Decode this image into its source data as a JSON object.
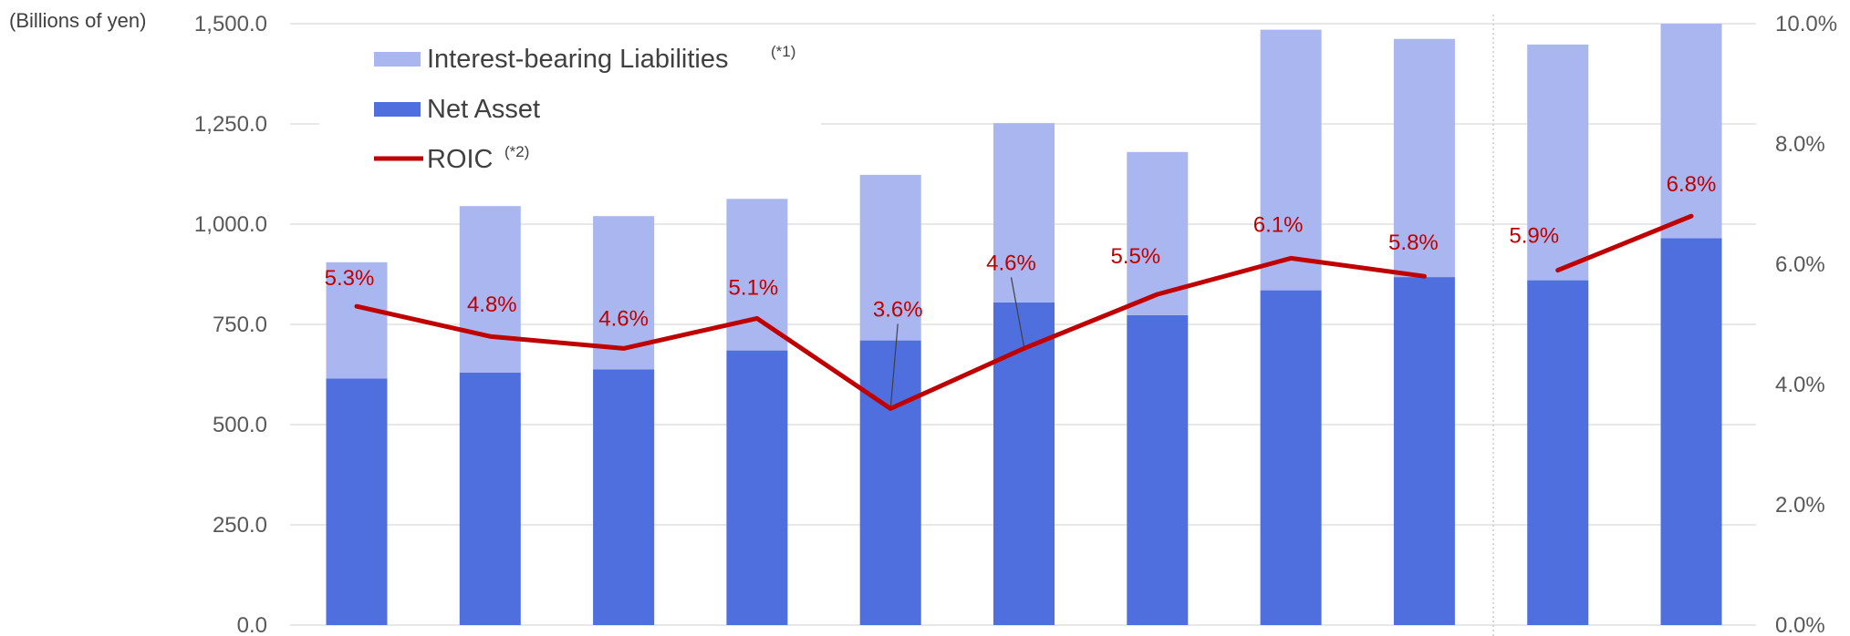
{
  "colors": {
    "interest_bearing": "#a9b6ef",
    "net_asset": "#4f6fdf",
    "roic": "#c00000",
    "grid": "#d9d9d9",
    "axis_text": "#595959"
  },
  "chart_data": {
    "type": "bar",
    "stacked": true,
    "unit_label": "(Billions of yen)",
    "categories": [
      "",
      "",
      "",
      "",
      "",
      "",
      "",
      "",
      "",
      "",
      ""
    ],
    "series": [
      {
        "name": "Net Asset",
        "type": "bar",
        "axis": "left",
        "values": [
          615,
          630,
          638,
          685,
          710,
          805,
          773,
          835,
          868,
          860,
          965
        ]
      },
      {
        "name": "Interest-bearing Liabilities",
        "note": "(*1)",
        "type": "bar",
        "axis": "left",
        "values": [
          290,
          415,
          382,
          378,
          413,
          447,
          407,
          650,
          594,
          588,
          535
        ]
      },
      {
        "name": "ROIC",
        "note": "(*2)",
        "type": "line",
        "axis": "right",
        "values": [
          5.3,
          4.8,
          4.6,
          5.1,
          3.6,
          4.6,
          5.5,
          6.1,
          5.8,
          5.9,
          6.8
        ],
        "labels": [
          "5.3%",
          "4.8%",
          "4.6%",
          "5.1%",
          "3.6%",
          "4.6%",
          "5.5%",
          "6.1%",
          "5.8%",
          "5.9%",
          "6.8%"
        ],
        "segment_breaks_after": [
          8
        ]
      }
    ],
    "y_left": {
      "lim": [
        0,
        1500
      ],
      "ticks": [
        0,
        250,
        500,
        750,
        1000,
        1250,
        1500
      ],
      "tick_labels": [
        "0.0",
        "250.0",
        "500.0",
        "750.0",
        "1,000.0",
        "1,250.0",
        "1,500.0"
      ]
    },
    "y_right": {
      "lim": [
        0,
        10
      ],
      "ticks": [
        0,
        2,
        4,
        6,
        8,
        10
      ],
      "tick_labels": [
        "0.0%",
        "2.0%",
        "4.0%",
        "6.0%",
        "8.0%",
        "10.0%"
      ]
    },
    "grid": true,
    "legend_position": "top-left"
  }
}
